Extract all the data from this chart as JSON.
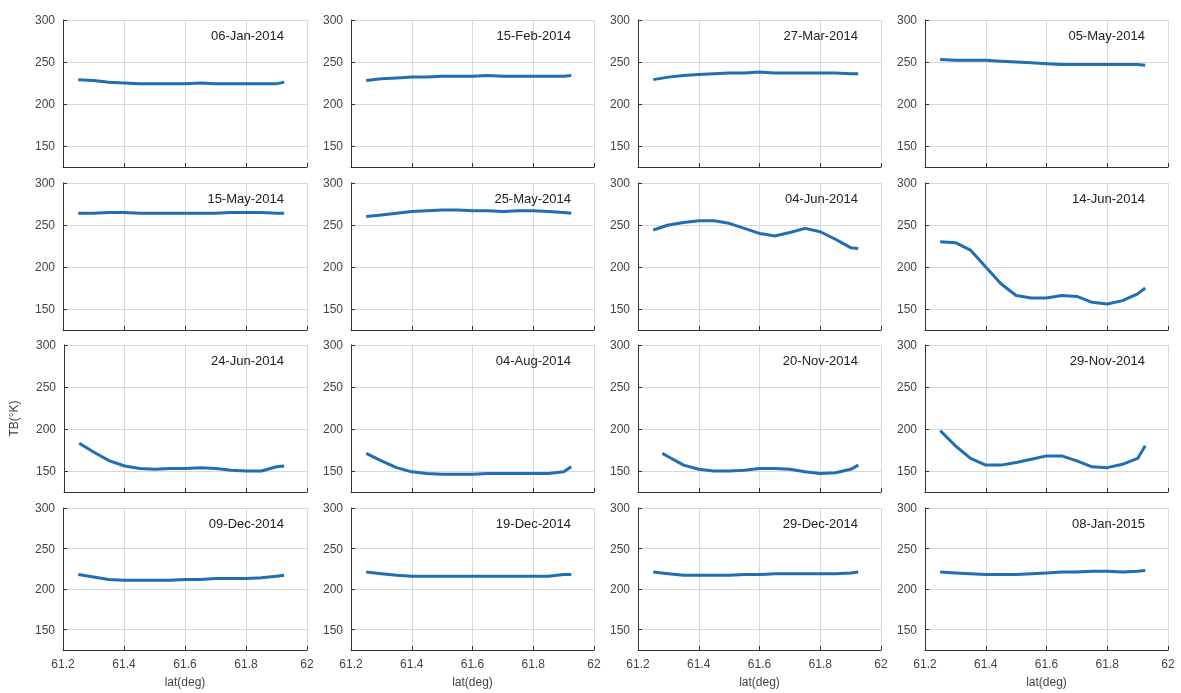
{
  "chart_data": [
    {
      "type": "line",
      "annotations": [
        "06-Jan-2014"
      ],
      "x": [
        61.25,
        61.3,
        61.35,
        61.4,
        61.45,
        61.5,
        61.55,
        61.6,
        61.65,
        61.7,
        61.75,
        61.8,
        61.85,
        61.9,
        61.925
      ],
      "series": [
        {
          "color": "#1f6fb2",
          "values": [
            229,
            228,
            226,
            225,
            224,
            224,
            224,
            224,
            225,
            224,
            224,
            224,
            224,
            224,
            226
          ]
        }
      ],
      "xlim": [
        61.2,
        62
      ],
      "xticks": [
        61.2,
        61.4,
        61.6,
        61.8,
        62
      ],
      "ylim": [
        125,
        300
      ],
      "yticks": [
        150,
        200,
        250,
        300
      ],
      "grid": true,
      "marker": "none",
      "line_style": "solid",
      "tick_labels": "y"
    },
    {
      "type": "line",
      "annotations": [
        "15-Feb-2014"
      ],
      "x": [
        61.25,
        61.3,
        61.35,
        61.4,
        61.45,
        61.5,
        61.55,
        61.6,
        61.65,
        61.7,
        61.75,
        61.8,
        61.85,
        61.9,
        61.925
      ],
      "series": [
        {
          "color": "#1f6fb2",
          "values": [
            228,
            230,
            231,
            232,
            232,
            233,
            233,
            233,
            234,
            233,
            233,
            233,
            233,
            233,
            234
          ]
        }
      ],
      "xlim": [
        61.2,
        62
      ],
      "xticks": [
        61.2,
        61.4,
        61.6,
        61.8,
        62
      ],
      "ylim": [
        125,
        300
      ],
      "yticks": [
        150,
        200,
        250,
        300
      ],
      "grid": true,
      "marker": "none",
      "line_style": "solid",
      "tick_labels": "y"
    },
    {
      "type": "line",
      "annotations": [
        "27-Mar-2014"
      ],
      "x": [
        61.25,
        61.3,
        61.35,
        61.4,
        61.45,
        61.5,
        61.55,
        61.6,
        61.65,
        61.7,
        61.75,
        61.8,
        61.85,
        61.9,
        61.925
      ],
      "series": [
        {
          "color": "#1f6fb2",
          "values": [
            229,
            232,
            234,
            235,
            236,
            237,
            237,
            238,
            237,
            237,
            237,
            237,
            237,
            236,
            236
          ]
        }
      ],
      "xlim": [
        61.2,
        62
      ],
      "xticks": [
        61.2,
        61.4,
        61.6,
        61.8,
        62
      ],
      "ylim": [
        125,
        300
      ],
      "yticks": [
        150,
        200,
        250,
        300
      ],
      "grid": true,
      "marker": "none",
      "line_style": "solid",
      "tick_labels": "y"
    },
    {
      "type": "line",
      "annotations": [
        "05-May-2014"
      ],
      "x": [
        61.25,
        61.3,
        61.35,
        61.4,
        61.45,
        61.5,
        61.55,
        61.6,
        61.65,
        61.7,
        61.75,
        61.8,
        61.85,
        61.9,
        61.925
      ],
      "series": [
        {
          "color": "#1f6fb2",
          "values": [
            253,
            252,
            252,
            252,
            251,
            250,
            249,
            248,
            247,
            247,
            247,
            247,
            247,
            247,
            246
          ]
        }
      ],
      "xlim": [
        61.2,
        62
      ],
      "xticks": [
        61.2,
        61.4,
        61.6,
        61.8,
        62
      ],
      "ylim": [
        125,
        300
      ],
      "yticks": [
        150,
        200,
        250,
        300
      ],
      "grid": true,
      "marker": "none",
      "line_style": "solid",
      "tick_labels": "y"
    },
    {
      "type": "line",
      "annotations": [
        "15-May-2014"
      ],
      "x": [
        61.25,
        61.3,
        61.35,
        61.4,
        61.45,
        61.5,
        61.55,
        61.6,
        61.65,
        61.7,
        61.75,
        61.8,
        61.85,
        61.9,
        61.925
      ],
      "series": [
        {
          "color": "#1f6fb2",
          "values": [
            264,
            264,
            265,
            265,
            264,
            264,
            264,
            264,
            264,
            264,
            265,
            265,
            265,
            264,
            264
          ]
        }
      ],
      "xlim": [
        61.2,
        62
      ],
      "xticks": [
        61.2,
        61.4,
        61.6,
        61.8,
        62
      ],
      "ylim": [
        125,
        300
      ],
      "yticks": [
        150,
        200,
        250,
        300
      ],
      "grid": true,
      "marker": "none",
      "line_style": "solid",
      "tick_labels": "y"
    },
    {
      "type": "line",
      "annotations": [
        "25-May-2014"
      ],
      "x": [
        61.25,
        61.3,
        61.35,
        61.4,
        61.45,
        61.5,
        61.55,
        61.6,
        61.65,
        61.7,
        61.75,
        61.8,
        61.85,
        61.9,
        61.925
      ],
      "series": [
        {
          "color": "#1f6fb2",
          "values": [
            260,
            262,
            264,
            266,
            267,
            268,
            268,
            267,
            267,
            266,
            267,
            267,
            266,
            265,
            264
          ]
        }
      ],
      "xlim": [
        61.2,
        62
      ],
      "xticks": [
        61.2,
        61.4,
        61.6,
        61.8,
        62
      ],
      "ylim": [
        125,
        300
      ],
      "yticks": [
        150,
        200,
        250,
        300
      ],
      "grid": true,
      "marker": "none",
      "line_style": "solid",
      "tick_labels": "y"
    },
    {
      "type": "line",
      "annotations": [
        "04-Jun-2014"
      ],
      "x": [
        61.25,
        61.3,
        61.35,
        61.4,
        61.45,
        61.5,
        61.55,
        61.6,
        61.65,
        61.7,
        61.75,
        61.8,
        61.85,
        61.9,
        61.925
      ],
      "series": [
        {
          "color": "#1f6fb2",
          "values": [
            244,
            250,
            253,
            255,
            255,
            252,
            246,
            240,
            237,
            241,
            246,
            242,
            233,
            223,
            222
          ]
        }
      ],
      "xlim": [
        61.2,
        62
      ],
      "xticks": [
        61.2,
        61.4,
        61.6,
        61.8,
        62
      ],
      "ylim": [
        125,
        300
      ],
      "yticks": [
        150,
        200,
        250,
        300
      ],
      "grid": true,
      "marker": "none",
      "line_style": "solid",
      "tick_labels": "y"
    },
    {
      "type": "line",
      "annotations": [
        "14-Jun-2014"
      ],
      "x": [
        61.25,
        61.3,
        61.35,
        61.4,
        61.45,
        61.5,
        61.55,
        61.6,
        61.65,
        61.7,
        61.75,
        61.8,
        61.85,
        61.9,
        61.925
      ],
      "series": [
        {
          "color": "#1f6fb2",
          "values": [
            230,
            229,
            220,
            200,
            180,
            166,
            163,
            163,
            166,
            165,
            158,
            156,
            160,
            168,
            175
          ]
        }
      ],
      "xlim": [
        61.2,
        62
      ],
      "xticks": [
        61.2,
        61.4,
        61.6,
        61.8,
        62
      ],
      "ylim": [
        125,
        300
      ],
      "yticks": [
        150,
        200,
        250,
        300
      ],
      "grid": true,
      "marker": "none",
      "line_style": "solid",
      "tick_labels": "y"
    },
    {
      "type": "line",
      "ylabel": "TB(°K)",
      "annotations": [
        "24-Jun-2014"
      ],
      "x": [
        61.25,
        61.3,
        61.35,
        61.4,
        61.45,
        61.5,
        61.55,
        61.6,
        61.65,
        61.7,
        61.75,
        61.8,
        61.85,
        61.9,
        61.925
      ],
      "series": [
        {
          "color": "#1f6fb2",
          "values": [
            183,
            172,
            162,
            156,
            153,
            152,
            153,
            153,
            154,
            153,
            151,
            150,
            150,
            155,
            156
          ]
        }
      ],
      "xlim": [
        61.2,
        62
      ],
      "xticks": [
        61.2,
        61.4,
        61.6,
        61.8,
        62
      ],
      "ylim": [
        125,
        300
      ],
      "yticks": [
        150,
        200,
        250,
        300
      ],
      "grid": true,
      "marker": "none",
      "line_style": "solid",
      "tick_labels": "y"
    },
    {
      "type": "line",
      "annotations": [
        "04-Aug-2014"
      ],
      "x": [
        61.25,
        61.3,
        61.35,
        61.4,
        61.45,
        61.5,
        61.55,
        61.6,
        61.65,
        61.7,
        61.75,
        61.8,
        61.85,
        61.9,
        61.925
      ],
      "series": [
        {
          "color": "#1f6fb2",
          "values": [
            171,
            162,
            154,
            149,
            147,
            146,
            146,
            146,
            147,
            147,
            147,
            147,
            147,
            149,
            155
          ]
        }
      ],
      "xlim": [
        61.2,
        62
      ],
      "xticks": [
        61.2,
        61.4,
        61.6,
        61.8,
        62
      ],
      "ylim": [
        125,
        300
      ],
      "yticks": [
        150,
        200,
        250,
        300
      ],
      "grid": true,
      "marker": "none",
      "line_style": "solid",
      "tick_labels": "y"
    },
    {
      "type": "line",
      "annotations": [
        "20-Nov-2014"
      ],
      "series": [
        {
          "color": "#1f6fb2",
          "x": [
            61.28,
            61.3,
            61.35,
            61.4,
            61.45,
            61.5,
            61.55,
            61.6,
            61.65,
            61.7,
            61.75,
            61.8,
            61.85,
            61.9,
            61.925
          ],
          "values": [
            171,
            167,
            157,
            152,
            150,
            150,
            151,
            153,
            153,
            152,
            149,
            147,
            148,
            152,
            157
          ]
        }
      ],
      "xlim": [
        61.2,
        62
      ],
      "xticks": [
        61.2,
        61.4,
        61.6,
        61.8,
        62
      ],
      "ylim": [
        125,
        300
      ],
      "yticks": [
        150,
        200,
        250,
        300
      ],
      "grid": true,
      "marker": "none",
      "line_style": "solid",
      "tick_labels": "y"
    },
    {
      "type": "line",
      "annotations": [
        "29-Nov-2014"
      ],
      "x": [
        61.25,
        61.3,
        61.35,
        61.4,
        61.45,
        61.5,
        61.55,
        61.6,
        61.65,
        61.7,
        61.75,
        61.8,
        61.85,
        61.9,
        61.925
      ],
      "series": [
        {
          "color": "#1f6fb2",
          "values": [
            198,
            180,
            165,
            157,
            157,
            160,
            164,
            168,
            168,
            162,
            155,
            154,
            158,
            165,
            180
          ]
        }
      ],
      "xlim": [
        61.2,
        62
      ],
      "xticks": [
        61.2,
        61.4,
        61.6,
        61.8,
        62
      ],
      "ylim": [
        125,
        300
      ],
      "yticks": [
        150,
        200,
        250,
        300
      ],
      "grid": true,
      "marker": "none",
      "line_style": "solid",
      "tick_labels": "y"
    },
    {
      "type": "line",
      "xlabel": "lat(deg)",
      "annotations": [
        "09-Dec-2014"
      ],
      "x": [
        61.25,
        61.3,
        61.35,
        61.4,
        61.45,
        61.5,
        61.55,
        61.6,
        61.65,
        61.7,
        61.75,
        61.8,
        61.85,
        61.9,
        61.925
      ],
      "series": [
        {
          "color": "#1f6fb2",
          "values": [
            218,
            215,
            212,
            211,
            211,
            211,
            211,
            212,
            212,
            213,
            213,
            213,
            214,
            216,
            217
          ]
        }
      ],
      "xlim": [
        61.2,
        62
      ],
      "xticks": [
        61.2,
        61.4,
        61.6,
        61.8,
        62
      ],
      "ylim": [
        125,
        300
      ],
      "yticks": [
        150,
        200,
        250,
        300
      ],
      "grid": true,
      "marker": "none",
      "line_style": "solid"
    },
    {
      "type": "line",
      "xlabel": "lat(deg)",
      "annotations": [
        "19-Dec-2014"
      ],
      "x": [
        61.25,
        61.3,
        61.35,
        61.4,
        61.45,
        61.5,
        61.55,
        61.6,
        61.65,
        61.7,
        61.75,
        61.8,
        61.85,
        61.9,
        61.925
      ],
      "series": [
        {
          "color": "#1f6fb2",
          "values": [
            221,
            219,
            217,
            216,
            216,
            216,
            216,
            216,
            216,
            216,
            216,
            216,
            216,
            218,
            218
          ]
        }
      ],
      "xlim": [
        61.2,
        62
      ],
      "xticks": [
        61.2,
        61.4,
        61.6,
        61.8,
        62
      ],
      "ylim": [
        125,
        300
      ],
      "yticks": [
        150,
        200,
        250,
        300
      ],
      "grid": true,
      "marker": "none",
      "line_style": "solid"
    },
    {
      "type": "line",
      "xlabel": "lat(deg)",
      "annotations": [
        "29-Dec-2014"
      ],
      "x": [
        61.25,
        61.3,
        61.35,
        61.4,
        61.45,
        61.5,
        61.55,
        61.6,
        61.65,
        61.7,
        61.75,
        61.8,
        61.85,
        61.9,
        61.925
      ],
      "series": [
        {
          "color": "#1f6fb2",
          "values": [
            221,
            219,
            217,
            217,
            217,
            217,
            218,
            218,
            219,
            219,
            219,
            219,
            219,
            220,
            221
          ]
        }
      ],
      "xlim": [
        61.2,
        62
      ],
      "xticks": [
        61.2,
        61.4,
        61.6,
        61.8,
        62
      ],
      "ylim": [
        125,
        300
      ],
      "yticks": [
        150,
        200,
        250,
        300
      ],
      "grid": true,
      "marker": "none",
      "line_style": "solid"
    },
    {
      "type": "line",
      "xlabel": "lat(deg)",
      "annotations": [
        "08-Jan-2015"
      ],
      "x": [
        61.25,
        61.3,
        61.35,
        61.4,
        61.45,
        61.5,
        61.55,
        61.6,
        61.65,
        61.7,
        61.75,
        61.8,
        61.85,
        61.9,
        61.925
      ],
      "series": [
        {
          "color": "#1f6fb2",
          "values": [
            221,
            220,
            219,
            218,
            218,
            218,
            219,
            220,
            221,
            221,
            222,
            222,
            221,
            222,
            223
          ]
        }
      ],
      "xlim": [
        61.2,
        62
      ],
      "xticks": [
        61.2,
        61.4,
        61.6,
        61.8,
        62
      ],
      "ylim": [
        125,
        300
      ],
      "yticks": [
        150,
        200,
        250,
        300
      ],
      "grid": true,
      "marker": "none",
      "line_style": "solid"
    }
  ]
}
